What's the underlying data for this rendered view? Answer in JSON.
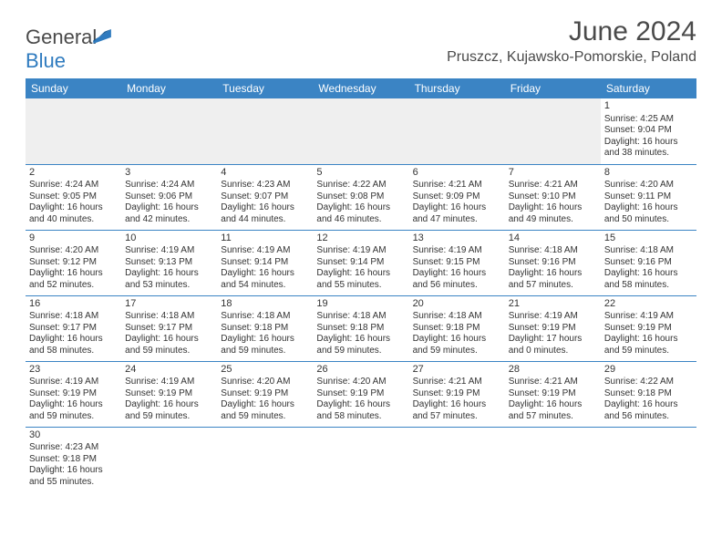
{
  "brand": {
    "part1": "General",
    "part2": "Blue"
  },
  "title": "June 2024",
  "location": "Pruszcz, Kujawsko-Pomorskie, Poland",
  "colors": {
    "header_bg": "#3b84c4",
    "header_text": "#ffffff",
    "text": "#333333",
    "rule": "#3b84c4",
    "blank_bg": "#efefef",
    "brand_grey": "#4a4a4a",
    "brand_blue": "#2f7bbf"
  },
  "typography": {
    "title_fontsize": 30,
    "location_fontsize": 16,
    "dayheader_fontsize": 12,
    "cell_fontsize": 10,
    "logo_fontsize": 22
  },
  "day_headers": [
    "Sunday",
    "Monday",
    "Tuesday",
    "Wednesday",
    "Thursday",
    "Friday",
    "Saturday"
  ],
  "weeks": [
    [
      null,
      null,
      null,
      null,
      null,
      null,
      {
        "n": "1",
        "sunrise": "Sunrise: 4:25 AM",
        "sunset": "Sunset: 9:04 PM",
        "daylight": "Daylight: 16 hours and 38 minutes."
      }
    ],
    [
      {
        "n": "2",
        "sunrise": "Sunrise: 4:24 AM",
        "sunset": "Sunset: 9:05 PM",
        "daylight": "Daylight: 16 hours and 40 minutes."
      },
      {
        "n": "3",
        "sunrise": "Sunrise: 4:24 AM",
        "sunset": "Sunset: 9:06 PM",
        "daylight": "Daylight: 16 hours and 42 minutes."
      },
      {
        "n": "4",
        "sunrise": "Sunrise: 4:23 AM",
        "sunset": "Sunset: 9:07 PM",
        "daylight": "Daylight: 16 hours and 44 minutes."
      },
      {
        "n": "5",
        "sunrise": "Sunrise: 4:22 AM",
        "sunset": "Sunset: 9:08 PM",
        "daylight": "Daylight: 16 hours and 46 minutes."
      },
      {
        "n": "6",
        "sunrise": "Sunrise: 4:21 AM",
        "sunset": "Sunset: 9:09 PM",
        "daylight": "Daylight: 16 hours and 47 minutes."
      },
      {
        "n": "7",
        "sunrise": "Sunrise: 4:21 AM",
        "sunset": "Sunset: 9:10 PM",
        "daylight": "Daylight: 16 hours and 49 minutes."
      },
      {
        "n": "8",
        "sunrise": "Sunrise: 4:20 AM",
        "sunset": "Sunset: 9:11 PM",
        "daylight": "Daylight: 16 hours and 50 minutes."
      }
    ],
    [
      {
        "n": "9",
        "sunrise": "Sunrise: 4:20 AM",
        "sunset": "Sunset: 9:12 PM",
        "daylight": "Daylight: 16 hours and 52 minutes."
      },
      {
        "n": "10",
        "sunrise": "Sunrise: 4:19 AM",
        "sunset": "Sunset: 9:13 PM",
        "daylight": "Daylight: 16 hours and 53 minutes."
      },
      {
        "n": "11",
        "sunrise": "Sunrise: 4:19 AM",
        "sunset": "Sunset: 9:14 PM",
        "daylight": "Daylight: 16 hours and 54 minutes."
      },
      {
        "n": "12",
        "sunrise": "Sunrise: 4:19 AM",
        "sunset": "Sunset: 9:14 PM",
        "daylight": "Daylight: 16 hours and 55 minutes."
      },
      {
        "n": "13",
        "sunrise": "Sunrise: 4:19 AM",
        "sunset": "Sunset: 9:15 PM",
        "daylight": "Daylight: 16 hours and 56 minutes."
      },
      {
        "n": "14",
        "sunrise": "Sunrise: 4:18 AM",
        "sunset": "Sunset: 9:16 PM",
        "daylight": "Daylight: 16 hours and 57 minutes."
      },
      {
        "n": "15",
        "sunrise": "Sunrise: 4:18 AM",
        "sunset": "Sunset: 9:16 PM",
        "daylight": "Daylight: 16 hours and 58 minutes."
      }
    ],
    [
      {
        "n": "16",
        "sunrise": "Sunrise: 4:18 AM",
        "sunset": "Sunset: 9:17 PM",
        "daylight": "Daylight: 16 hours and 58 minutes."
      },
      {
        "n": "17",
        "sunrise": "Sunrise: 4:18 AM",
        "sunset": "Sunset: 9:17 PM",
        "daylight": "Daylight: 16 hours and 59 minutes."
      },
      {
        "n": "18",
        "sunrise": "Sunrise: 4:18 AM",
        "sunset": "Sunset: 9:18 PM",
        "daylight": "Daylight: 16 hours and 59 minutes."
      },
      {
        "n": "19",
        "sunrise": "Sunrise: 4:18 AM",
        "sunset": "Sunset: 9:18 PM",
        "daylight": "Daylight: 16 hours and 59 minutes."
      },
      {
        "n": "20",
        "sunrise": "Sunrise: 4:18 AM",
        "sunset": "Sunset: 9:18 PM",
        "daylight": "Daylight: 16 hours and 59 minutes."
      },
      {
        "n": "21",
        "sunrise": "Sunrise: 4:19 AM",
        "sunset": "Sunset: 9:19 PM",
        "daylight": "Daylight: 17 hours and 0 minutes."
      },
      {
        "n": "22",
        "sunrise": "Sunrise: 4:19 AM",
        "sunset": "Sunset: 9:19 PM",
        "daylight": "Daylight: 16 hours and 59 minutes."
      }
    ],
    [
      {
        "n": "23",
        "sunrise": "Sunrise: 4:19 AM",
        "sunset": "Sunset: 9:19 PM",
        "daylight": "Daylight: 16 hours and 59 minutes."
      },
      {
        "n": "24",
        "sunrise": "Sunrise: 4:19 AM",
        "sunset": "Sunset: 9:19 PM",
        "daylight": "Daylight: 16 hours and 59 minutes."
      },
      {
        "n": "25",
        "sunrise": "Sunrise: 4:20 AM",
        "sunset": "Sunset: 9:19 PM",
        "daylight": "Daylight: 16 hours and 59 minutes."
      },
      {
        "n": "26",
        "sunrise": "Sunrise: 4:20 AM",
        "sunset": "Sunset: 9:19 PM",
        "daylight": "Daylight: 16 hours and 58 minutes."
      },
      {
        "n": "27",
        "sunrise": "Sunrise: 4:21 AM",
        "sunset": "Sunset: 9:19 PM",
        "daylight": "Daylight: 16 hours and 57 minutes."
      },
      {
        "n": "28",
        "sunrise": "Sunrise: 4:21 AM",
        "sunset": "Sunset: 9:19 PM",
        "daylight": "Daylight: 16 hours and 57 minutes."
      },
      {
        "n": "29",
        "sunrise": "Sunrise: 4:22 AM",
        "sunset": "Sunset: 9:18 PM",
        "daylight": "Daylight: 16 hours and 56 minutes."
      }
    ],
    [
      {
        "n": "30",
        "sunrise": "Sunrise: 4:23 AM",
        "sunset": "Sunset: 9:18 PM",
        "daylight": "Daylight: 16 hours and 55 minutes."
      },
      null,
      null,
      null,
      null,
      null,
      null
    ]
  ]
}
